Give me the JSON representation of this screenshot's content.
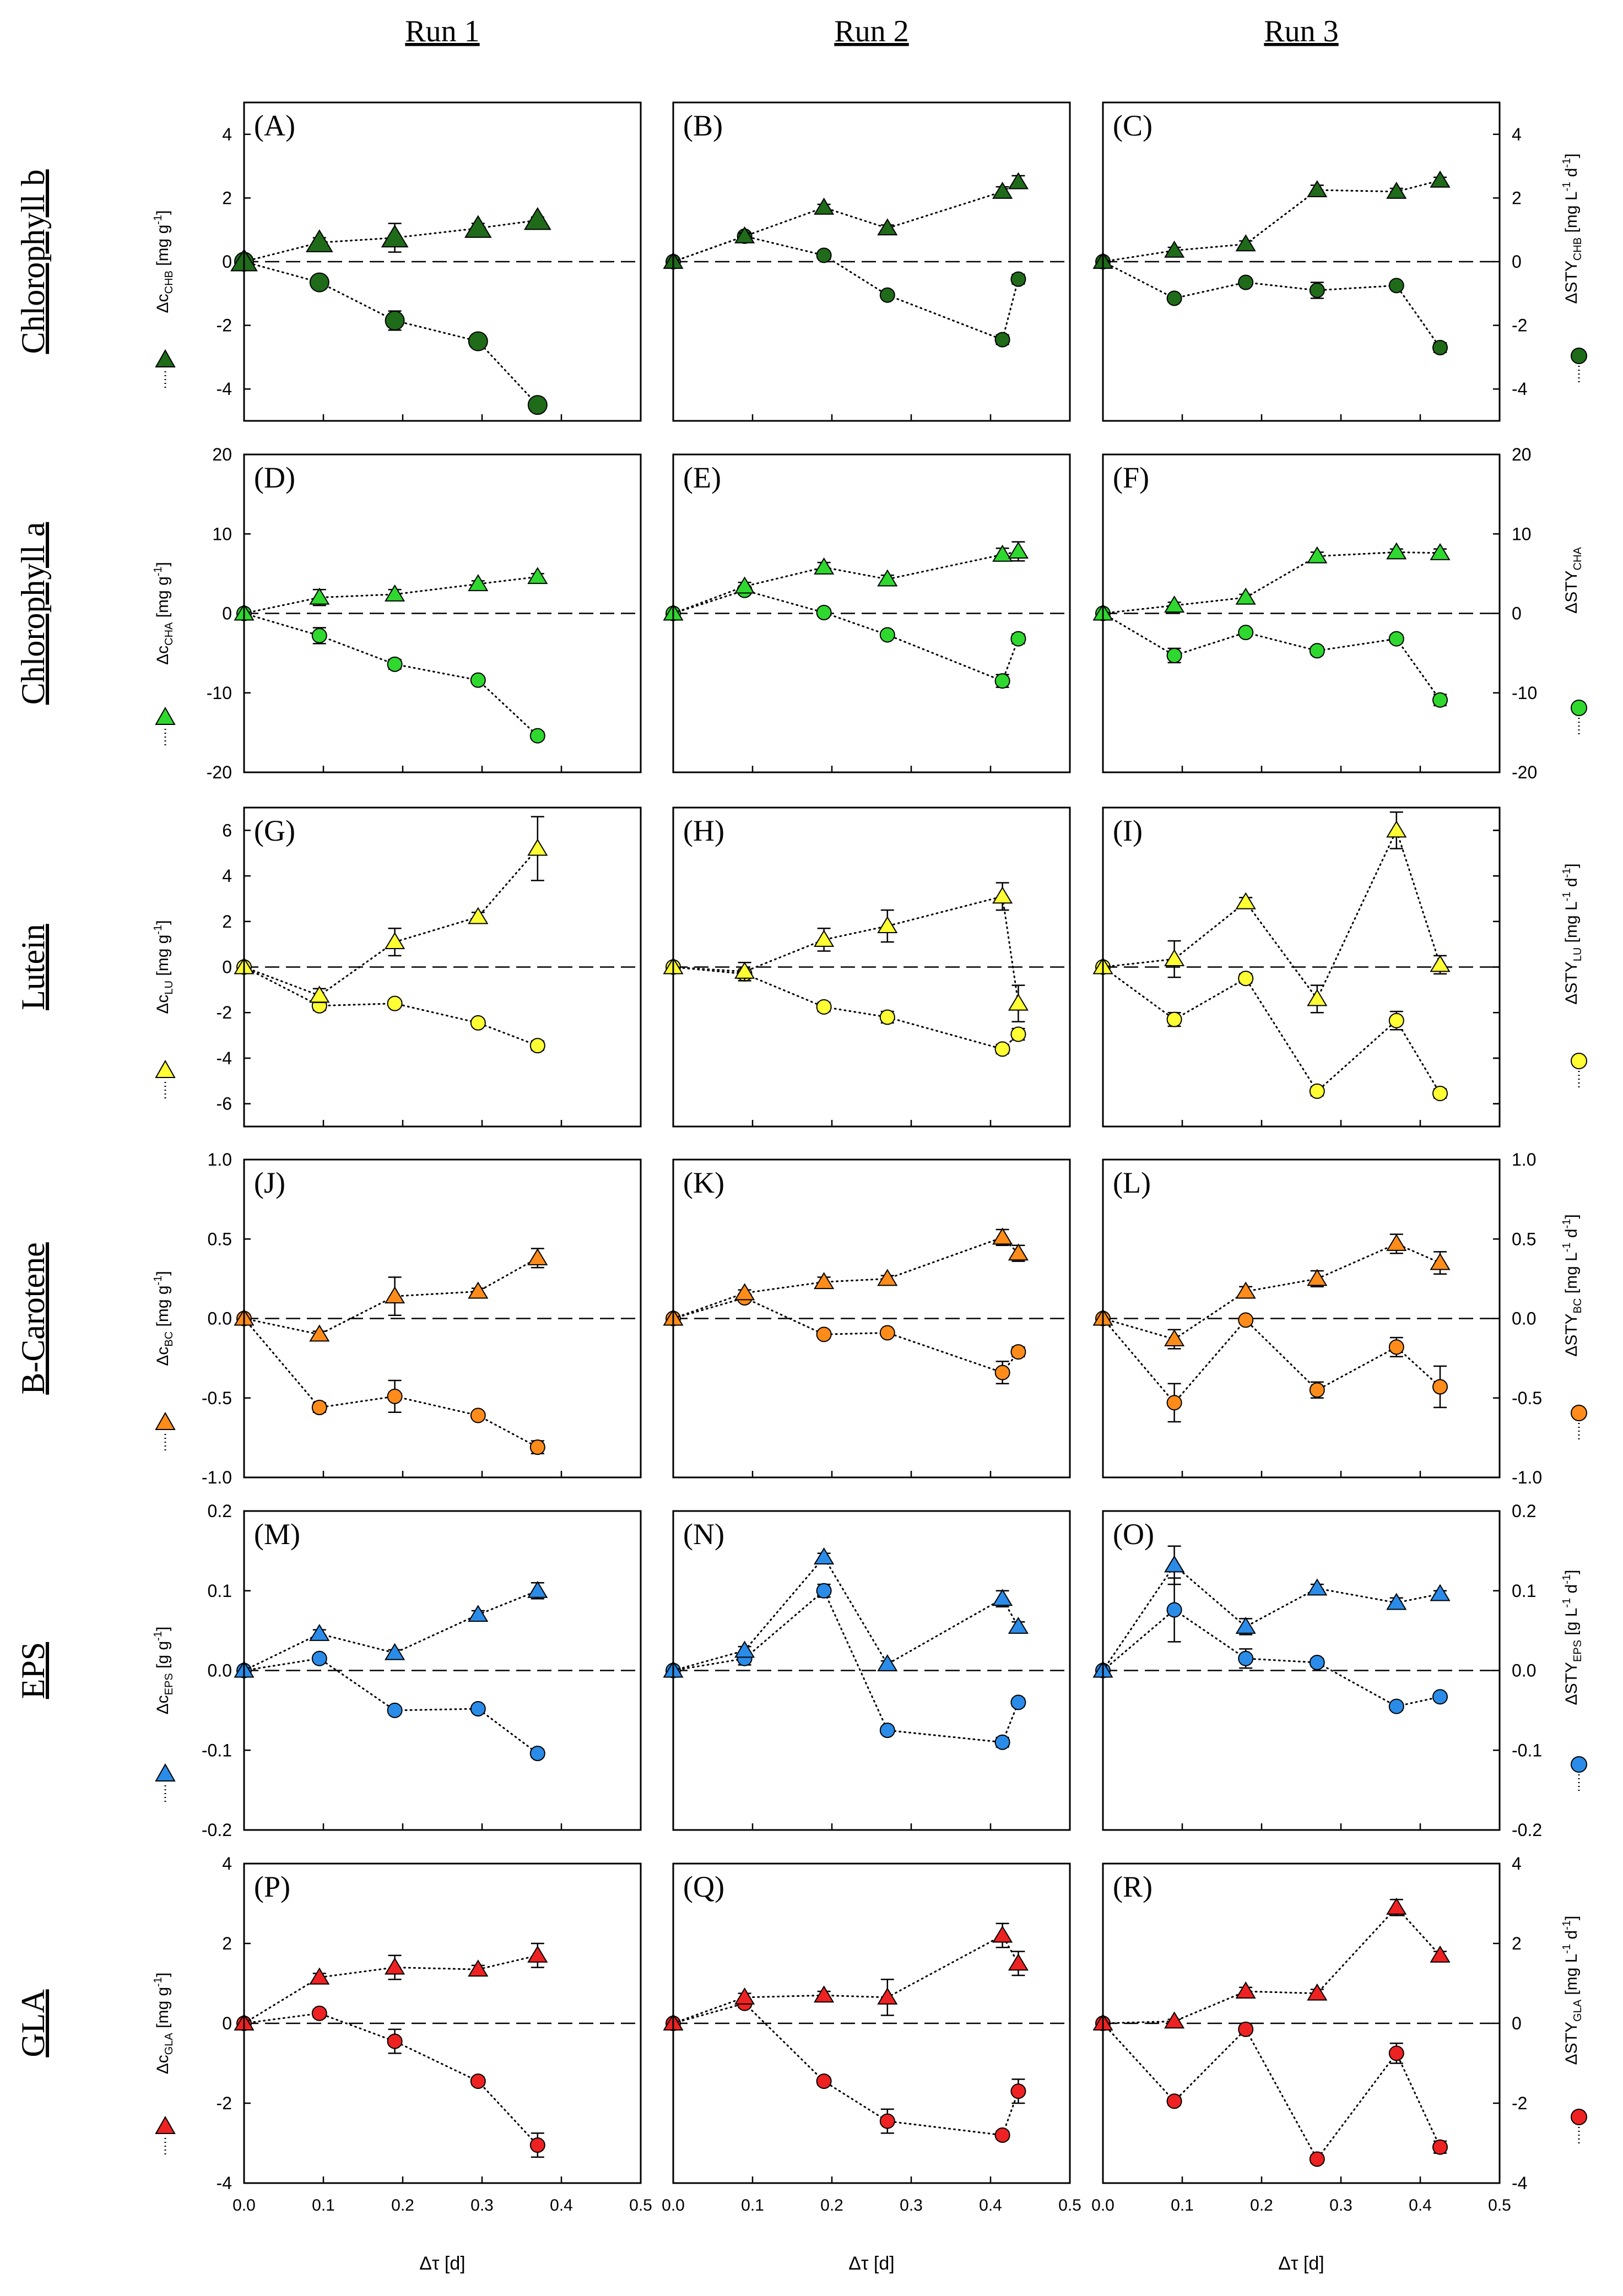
{
  "figure": {
    "columns": [
      "Run 1",
      "Run 2",
      "Run 3"
    ],
    "x_axis": {
      "label": "Δτ [d]",
      "ticks": [
        "0.0",
        "0.1",
        "0.2",
        "0.3",
        "0.4",
        "0.5"
      ],
      "range": [
        0,
        0.5
      ]
    }
  },
  "chart_data": [
    {
      "type": "line",
      "row_label": "Chlorophyll b",
      "left_axis": {
        "pre": "Δc",
        "sub": "CHB",
        "unit": "[mg g",
        "unitsup": "-1",
        "tail": "]"
      },
      "right_axis": {
        "pre": "ΔSTY",
        "sub": "CHB",
        "unit": "[mg L",
        "unitsup": "-1",
        "mid": " d",
        "midsup": "-1",
        "tail": "]"
      },
      "ylim": [
        -5,
        5
      ],
      "yticks": [
        -4,
        -2,
        0,
        2,
        4
      ],
      "right_ticks": true,
      "color": "#1f6b1a",
      "panels": [
        {
          "label": "(A)",
          "x": [
            0.0,
            0.095,
            0.19,
            0.295,
            0.37
          ],
          "triangle": [
            0.0,
            0.6,
            0.75,
            1.05,
            1.3
          ],
          "tri_err": [
            0,
            0.15,
            0.45,
            0.15,
            0.1
          ],
          "circle": [
            0.0,
            -0.65,
            -1.85,
            -2.5,
            -4.5
          ],
          "circ_err": [
            0,
            0.15,
            0.3,
            0.1,
            0.1
          ]
        },
        {
          "label": "(B)",
          "x": [
            0.0,
            0.09,
            0.19,
            0.27,
            0.415,
            0.435
          ],
          "triangle": [
            0.0,
            0.8,
            1.7,
            1.05,
            2.2,
            2.5
          ],
          "tri_err": [
            0,
            0.1,
            0.1,
            0.1,
            0.15,
            0.2
          ],
          "circle": [
            0.0,
            0.8,
            0.2,
            -1.05,
            -2.45,
            -0.55
          ],
          "circ_err": [
            0,
            0.1,
            0.1,
            0.1,
            0.15,
            0.15
          ]
        },
        {
          "label": "(C)",
          "x": [
            0.0,
            0.09,
            0.18,
            0.27,
            0.37,
            0.425
          ],
          "triangle": [
            0.0,
            0.35,
            0.55,
            2.25,
            2.2,
            2.55
          ],
          "tri_err": [
            0,
            0.1,
            0.1,
            0.15,
            0.1,
            0.1
          ],
          "circle": [
            0.0,
            -1.15,
            -0.65,
            -0.9,
            -0.75,
            -2.7
          ],
          "circ_err": [
            0,
            0.1,
            0.1,
            0.25,
            0.1,
            0.15
          ]
        }
      ]
    },
    {
      "type": "line",
      "row_label": "Chlorophyll a",
      "left_axis": {
        "pre": "Δc",
        "sub": "CHA",
        "unit": "[mg g",
        "unitsup": "-1",
        "tail": "]"
      },
      "right_axis": {
        "pre": "ΔSTY",
        "sub": "CHA",
        "unit": "",
        "unitsup": "",
        "mid": "",
        "midsup": "",
        "tail": ""
      },
      "ylim": [
        -20,
        20
      ],
      "yticks": [
        -20,
        -10,
        0,
        10,
        20
      ],
      "right_ticks": true,
      "color": "#2fd82f",
      "panels": [
        {
          "label": "(D)",
          "x": [
            0.0,
            0.095,
            0.19,
            0.295,
            0.37
          ],
          "triangle": [
            0.0,
            2.0,
            2.4,
            3.7,
            4.6
          ],
          "tri_err": [
            0,
            1.0,
            0.6,
            0.4,
            0.4
          ],
          "circle": [
            0.0,
            -2.8,
            -6.4,
            -8.4,
            -15.4
          ],
          "circ_err": [
            0,
            1.0,
            0.6,
            0.4,
            0.5
          ]
        },
        {
          "label": "(E)",
          "x": [
            0.0,
            0.09,
            0.19,
            0.27,
            0.415,
            0.435
          ],
          "triangle": [
            0.0,
            3.4,
            5.8,
            4.3,
            7.4,
            7.8
          ],
          "tri_err": [
            0,
            0.5,
            0.6,
            0.5,
            0.8,
            1.2
          ],
          "circle": [
            0.0,
            2.9,
            0.1,
            -2.7,
            -8.5,
            -3.2
          ],
          "circ_err": [
            0,
            0.5,
            0.4,
            0.4,
            0.8,
            0.6
          ]
        },
        {
          "label": "(F)",
          "x": [
            0.0,
            0.09,
            0.18,
            0.27,
            0.37,
            0.425
          ],
          "triangle": [
            0.0,
            1.0,
            2.0,
            7.2,
            7.7,
            7.6
          ],
          "tri_err": [
            0,
            0.4,
            0.4,
            0.5,
            0.4,
            0.5
          ],
          "circle": [
            0.0,
            -5.3,
            -2.4,
            -4.7,
            -3.2,
            -10.9
          ],
          "circ_err": [
            0,
            0.9,
            0.4,
            0.5,
            0.5,
            0.7
          ]
        }
      ]
    },
    {
      "type": "line",
      "row_label": "Lutein",
      "left_axis": {
        "pre": "Δc",
        "sub": "LU",
        "unit": "[mg g",
        "unitsup": "-1",
        "tail": "]"
      },
      "right_axis": {
        "pre": "ΔSTY",
        "sub": "LU",
        "unit": "[mg L",
        "unitsup": "-1",
        "mid": " d",
        "midsup": "-1",
        "tail": "]"
      },
      "ylim": [
        -7,
        7
      ],
      "yticks": [
        -6,
        -4,
        -2,
        0,
        2,
        4,
        6
      ],
      "right_ticks": false,
      "color": "#ffff33",
      "panels": [
        {
          "label": "(G)",
          "x": [
            0.0,
            0.095,
            0.19,
            0.295,
            0.37
          ],
          "triangle": [
            0.0,
            -1.25,
            1.1,
            2.2,
            5.2
          ],
          "tri_err": [
            0,
            0.3,
            0.6,
            0.2,
            1.4
          ],
          "circle": [
            0.0,
            -1.7,
            -1.6,
            -2.45,
            -3.45
          ],
          "circ_err": [
            0,
            0.2,
            0.15,
            0.15,
            0.2
          ]
        },
        {
          "label": "(H)",
          "x": [
            0.0,
            0.09,
            0.19,
            0.27,
            0.415,
            0.435
          ],
          "triangle": [
            0.0,
            -0.2,
            1.2,
            1.8,
            3.1,
            -1.6
          ],
          "tri_err": [
            0,
            0.4,
            0.5,
            0.7,
            0.6,
            0.8
          ],
          "circle": [
            0.0,
            -0.3,
            -1.75,
            -2.2,
            -3.6,
            -2.95
          ],
          "circ_err": [
            0,
            0.2,
            0.2,
            0.25,
            0.2,
            0.25
          ]
        },
        {
          "label": "(I)",
          "x": [
            0.0,
            0.09,
            0.18,
            0.27,
            0.37,
            0.425
          ],
          "triangle": [
            0.0,
            0.35,
            2.85,
            -1.4,
            6.0,
            0.1
          ],
          "tri_err": [
            0,
            0.8,
            0.2,
            0.6,
            0.8,
            0.4
          ],
          "circle": [
            0.0,
            -2.3,
            -0.5,
            -5.45,
            -2.35,
            -5.55
          ],
          "circ_err": [
            0,
            0.3,
            0.2,
            0.2,
            0.4,
            0.2
          ]
        }
      ]
    },
    {
      "type": "line",
      "row_label": "B-Carotene",
      "left_axis": {
        "pre": "Δc",
        "sub": "BC",
        "unit": "[mg g",
        "unitsup": "-1",
        "tail": "]"
      },
      "right_axis": {
        "pre": "ΔSTY",
        "sub": "BC",
        "unit": "[mg L",
        "unitsup": "-1",
        "mid": " d",
        "midsup": "-1",
        "tail": "]"
      },
      "ylim": [
        -1.0,
        1.0
      ],
      "yticks": [
        -1.0,
        -0.5,
        0.0,
        0.5,
        1.0
      ],
      "right_ticks": true,
      "color": "#ff8c1a",
      "panels": [
        {
          "label": "(J)",
          "x": [
            0.0,
            0.095,
            0.19,
            0.295,
            0.37
          ],
          "triangle": [
            0.0,
            -0.1,
            0.14,
            0.17,
            0.38
          ],
          "tri_err": [
            0,
            0.02,
            0.12,
            0.02,
            0.06
          ],
          "circle": [
            0.0,
            -0.56,
            -0.49,
            -0.61,
            -0.81
          ],
          "circ_err": [
            0,
            0.03,
            0.1,
            0.02,
            0.04
          ]
        },
        {
          "label": "(K)",
          "x": [
            0.0,
            0.09,
            0.19,
            0.27,
            0.415,
            0.435
          ],
          "triangle": [
            0.0,
            0.16,
            0.23,
            0.25,
            0.51,
            0.41
          ],
          "tri_err": [
            0,
            0.02,
            0.03,
            0.02,
            0.05,
            0.05
          ],
          "circle": [
            0.0,
            0.13,
            -0.1,
            -0.09,
            -0.34,
            -0.21
          ],
          "circ_err": [
            0,
            0.02,
            0.02,
            0.02,
            0.07,
            0.03
          ]
        },
        {
          "label": "(L)",
          "x": [
            0.0,
            0.09,
            0.18,
            0.27,
            0.37,
            0.425
          ],
          "triangle": [
            0.0,
            -0.13,
            0.17,
            0.25,
            0.47,
            0.35
          ],
          "tri_err": [
            0,
            0.06,
            0.03,
            0.05,
            0.06,
            0.07
          ],
          "circle": [
            0.0,
            -0.53,
            -0.01,
            -0.45,
            -0.18,
            -0.43
          ],
          "circ_err": [
            0,
            0.12,
            0.02,
            0.05,
            0.06,
            0.13
          ]
        }
      ]
    },
    {
      "type": "line",
      "row_label": "EPS",
      "left_axis": {
        "pre": "Δc",
        "sub": "EPS",
        "unit": "[g g",
        "unitsup": "-1",
        "tail": "]"
      },
      "right_axis": {
        "pre": "ΔSTY",
        "sub": "EPS",
        "unit": "[g L",
        "unitsup": "-1",
        "mid": " d",
        "midsup": "-1",
        "tail": "]"
      },
      "ylim": [
        -0.2,
        0.2
      ],
      "yticks": [
        -0.2,
        -0.1,
        0.0,
        0.1,
        0.2
      ],
      "right_ticks": true,
      "color": "#2a8ce8",
      "panels": [
        {
          "label": "(M)",
          "x": [
            0.0,
            0.095,
            0.19,
            0.295,
            0.37
          ],
          "triangle": [
            0.0,
            0.046,
            0.022,
            0.07,
            0.1
          ],
          "tri_err": [
            0,
            0.005,
            0.004,
            0.005,
            0.01
          ],
          "circle": [
            0.0,
            0.015,
            -0.05,
            -0.048,
            -0.104
          ],
          "circ_err": [
            0,
            0.004,
            0.004,
            0.004,
            0.005
          ]
        },
        {
          "label": "(N)",
          "x": [
            0.0,
            0.09,
            0.19,
            0.27,
            0.415,
            0.435
          ],
          "triangle": [
            0.0,
            0.025,
            0.142,
            0.008,
            0.09,
            0.055
          ],
          "tri_err": [
            0,
            0.005,
            0.005,
            0.004,
            0.01,
            0.006
          ],
          "circle": [
            0.0,
            0.015,
            0.1,
            -0.075,
            -0.09,
            -0.04
          ],
          "circ_err": [
            0,
            0.008,
            0.008,
            0.004,
            0.006,
            0.005
          ]
        },
        {
          "label": "(O)",
          "x": [
            0.0,
            0.09,
            0.18,
            0.27,
            0.37,
            0.425
          ],
          "triangle": [
            0.0,
            0.132,
            0.055,
            0.103,
            0.085,
            0.096
          ],
          "tri_err": [
            0,
            0.024,
            0.01,
            0.005,
            0.006,
            0.004
          ],
          "circle": [
            0.0,
            0.076,
            0.015,
            0.01,
            -0.045,
            -0.033
          ],
          "circ_err": [
            0,
            0.04,
            0.012,
            0.005,
            0.005,
            0.004
          ]
        }
      ]
    },
    {
      "type": "line",
      "row_label": "GLA",
      "left_axis": {
        "pre": "Δc",
        "sub": "GLA",
        "unit": "[mg g",
        "unitsup": "-1",
        "tail": "]"
      },
      "right_axis": {
        "pre": "ΔSTY",
        "sub": "GLA",
        "unit": "[mg L",
        "unitsup": "-1",
        "mid": " d",
        "midsup": "-1",
        "tail": "]"
      },
      "ylim": [
        -4,
        4
      ],
      "yticks": [
        -4,
        -2,
        0,
        2,
        4
      ],
      "right_ticks": true,
      "color": "#ee2222",
      "panels": [
        {
          "label": "(P)",
          "x": [
            0.0,
            0.095,
            0.19,
            0.295,
            0.37
          ],
          "triangle": [
            0.0,
            1.15,
            1.4,
            1.35,
            1.7
          ],
          "tri_err": [
            0,
            0.1,
            0.3,
            0.1,
            0.3
          ],
          "circle": [
            0.0,
            0.25,
            -0.45,
            -1.45,
            -3.05
          ],
          "circ_err": [
            0,
            0.1,
            0.3,
            0.1,
            0.3
          ]
        },
        {
          "label": "(Q)",
          "x": [
            0.0,
            0.09,
            0.19,
            0.27,
            0.415,
            0.435
          ],
          "triangle": [
            0.0,
            0.65,
            0.7,
            0.65,
            2.2,
            1.5
          ],
          "tri_err": [
            0,
            0.1,
            0.1,
            0.45,
            0.3,
            0.3
          ],
          "circle": [
            0.0,
            0.5,
            -1.45,
            -2.45,
            -2.8,
            -1.7
          ],
          "circ_err": [
            0,
            0.1,
            0.1,
            0.3,
            0.1,
            0.3
          ]
        },
        {
          "label": "(R)",
          "x": [
            0.0,
            0.09,
            0.18,
            0.27,
            0.37,
            0.425
          ],
          "triangle": [
            0.0,
            0.05,
            0.8,
            0.75,
            2.9,
            1.7
          ],
          "tri_err": [
            0,
            0.05,
            0.1,
            0.1,
            0.2,
            0.1
          ],
          "circle": [
            0.0,
            -1.95,
            -0.15,
            -3.4,
            -0.75,
            -3.1
          ],
          "circ_err": [
            0,
            0.1,
            0.1,
            0.1,
            0.25,
            0.15
          ]
        }
      ]
    }
  ]
}
